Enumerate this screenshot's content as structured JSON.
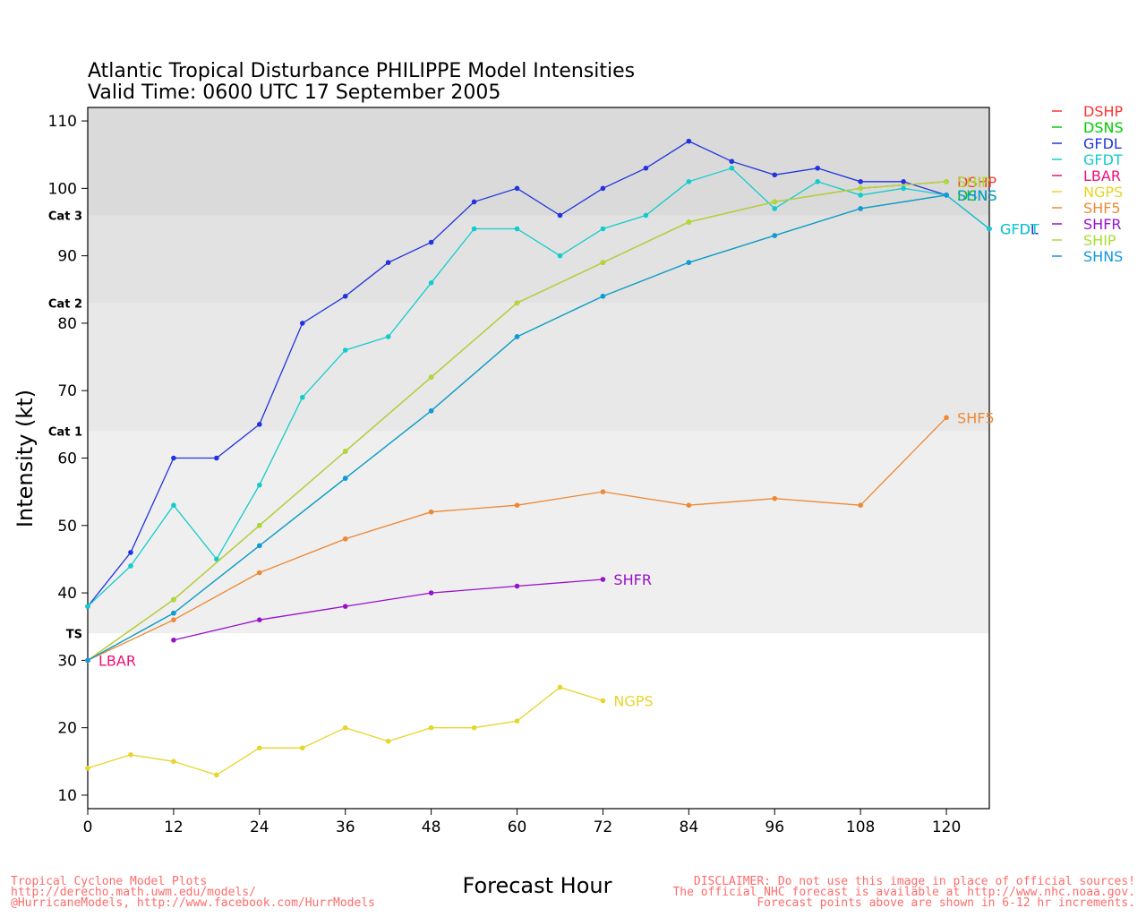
{
  "chart_data": {
    "type": "line",
    "title": "Atlantic Tropical Disturbance PHILIPPE Model Intensities",
    "subtitle": "Valid Time: 0600 UTC 17 September 2005",
    "xlabel": "Forecast Hour",
    "ylabel": "Intensity (kt)",
    "xlim": [
      0,
      126
    ],
    "ylim": [
      8,
      112
    ],
    "x_ticks": [
      0,
      12,
      24,
      36,
      48,
      60,
      72,
      84,
      96,
      108,
      120
    ],
    "y_ticks": [
      10,
      20,
      30,
      40,
      50,
      60,
      70,
      80,
      90,
      100,
      110
    ],
    "grid": false,
    "legend_position": "right",
    "intensity_bands": [
      {
        "label": "TS",
        "from": 34,
        "to": 64,
        "color": "#efefef"
      },
      {
        "label": "Cat 1",
        "from": 64,
        "to": 83,
        "color": "#e8e8e8"
      },
      {
        "label": "Cat 2",
        "from": 83,
        "to": 96,
        "color": "#e2e2e2"
      },
      {
        "label": "Cat 3",
        "from": 96,
        "to": 112,
        "color": "#dadada"
      }
    ],
    "series": [
      {
        "name": "DSHP",
        "color": "#ff3333",
        "end_label": "DSHP",
        "points": [
          [
            0,
            30
          ],
          [
            12,
            39
          ],
          [
            24,
            50
          ],
          [
            36,
            61
          ],
          [
            48,
            72
          ],
          [
            60,
            83
          ],
          [
            72,
            89
          ],
          [
            84,
            95
          ],
          [
            96,
            98
          ],
          [
            108,
            100
          ],
          [
            120,
            101
          ]
        ]
      },
      {
        "name": "DSNS",
        "color": "#00cc00",
        "end_label": "DSNS",
        "points": [
          [
            0,
            30
          ],
          [
            12,
            37
          ],
          [
            24,
            47
          ],
          [
            36,
            57
          ],
          [
            48,
            67
          ],
          [
            60,
            78
          ],
          [
            72,
            84
          ],
          [
            84,
            89
          ],
          [
            96,
            93
          ],
          [
            108,
            97
          ],
          [
            120,
            99
          ]
        ]
      },
      {
        "name": "GFDL",
        "color": "#2233dd",
        "end_label": "GFDL",
        "points": [
          [
            0,
            38
          ],
          [
            6,
            46
          ],
          [
            12,
            60
          ],
          [
            18,
            60
          ],
          [
            24,
            65
          ],
          [
            30,
            80
          ],
          [
            36,
            84
          ],
          [
            42,
            89
          ],
          [
            48,
            92
          ],
          [
            54,
            98
          ],
          [
            60,
            100
          ],
          [
            66,
            96
          ],
          [
            72,
            100
          ],
          [
            78,
            103
          ],
          [
            84,
            107
          ],
          [
            90,
            104
          ],
          [
            96,
            102
          ],
          [
            102,
            103
          ],
          [
            108,
            101
          ],
          [
            114,
            101
          ],
          [
            120,
            99
          ],
          [
            126,
            94
          ]
        ]
      },
      {
        "name": "GFDT",
        "color": "#11cccc",
        "end_label": "GFDT",
        "points": [
          [
            0,
            38
          ],
          [
            6,
            44
          ],
          [
            12,
            53
          ],
          [
            18,
            45
          ],
          [
            24,
            56
          ],
          [
            30,
            69
          ],
          [
            36,
            76
          ],
          [
            42,
            78
          ],
          [
            48,
            86
          ],
          [
            54,
            94
          ],
          [
            60,
            94
          ],
          [
            66,
            90
          ],
          [
            72,
            94
          ],
          [
            78,
            96
          ],
          [
            84,
            101
          ],
          [
            90,
            103
          ],
          [
            96,
            97
          ],
          [
            102,
            101
          ],
          [
            108,
            99
          ],
          [
            114,
            100
          ],
          [
            120,
            99
          ],
          [
            126,
            94
          ]
        ]
      },
      {
        "name": "LBAR",
        "color": "#ee1177",
        "end_label": "LBAR",
        "points": [
          [
            0,
            30
          ]
        ]
      },
      {
        "name": "NGPS",
        "color": "#e6d52a",
        "end_label": "NGPS",
        "points": [
          [
            0,
            14
          ],
          [
            6,
            16
          ],
          [
            12,
            15
          ],
          [
            18,
            13
          ],
          [
            24,
            17
          ],
          [
            30,
            17
          ],
          [
            36,
            20
          ],
          [
            42,
            18
          ],
          [
            48,
            20
          ],
          [
            54,
            20
          ],
          [
            60,
            21
          ],
          [
            66,
            26
          ],
          [
            72,
            24
          ]
        ]
      },
      {
        "name": "SHF5",
        "color": "#ee8833",
        "end_label": "SHF5",
        "points": [
          [
            0,
            30
          ],
          [
            12,
            36
          ],
          [
            24,
            43
          ],
          [
            36,
            48
          ],
          [
            48,
            52
          ],
          [
            60,
            53
          ],
          [
            72,
            55
          ],
          [
            84,
            53
          ],
          [
            96,
            54
          ],
          [
            108,
            53
          ],
          [
            120,
            66
          ]
        ]
      },
      {
        "name": "SHFR",
        "color": "#9911cc",
        "end_label": "SHFR",
        "points": [
          [
            12,
            33
          ],
          [
            24,
            36
          ],
          [
            36,
            38
          ],
          [
            48,
            40
          ],
          [
            60,
            41
          ],
          [
            72,
            42
          ]
        ]
      },
      {
        "name": "SHIP",
        "color": "#aadd33",
        "end_label": "SHIP",
        "points": [
          [
            0,
            30
          ],
          [
            12,
            39
          ],
          [
            24,
            50
          ],
          [
            36,
            61
          ],
          [
            48,
            72
          ],
          [
            60,
            83
          ],
          [
            72,
            89
          ],
          [
            84,
            95
          ],
          [
            96,
            98
          ],
          [
            108,
            100
          ],
          [
            120,
            101
          ]
        ]
      },
      {
        "name": "SHNS",
        "color": "#1199dd",
        "end_label": "SHNS",
        "points": [
          [
            0,
            30
          ],
          [
            12,
            37
          ],
          [
            24,
            47
          ],
          [
            36,
            57
          ],
          [
            48,
            67
          ],
          [
            60,
            78
          ],
          [
            72,
            84
          ],
          [
            84,
            89
          ],
          [
            96,
            93
          ],
          [
            108,
            97
          ],
          [
            120,
            99
          ]
        ]
      }
    ]
  },
  "footer": {
    "left_lines": [
      "Tropical Cyclone Model Plots",
      "http://derecho.math.uwm.edu/models/",
      "@HurricaneModels, http://www.facebook.com/HurrModels"
    ],
    "right_lines": [
      "DISCLAIMER: Do not use this image in place of official sources!",
      "The official NHC forecast is available at http://www.nhc.noaa.gov.",
      "Forecast points above are shown in 6-12 hr increments."
    ]
  }
}
